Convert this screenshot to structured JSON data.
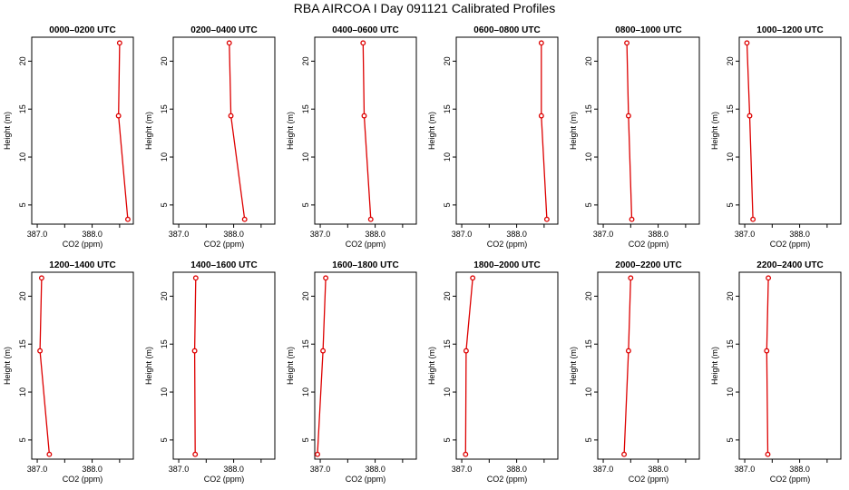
{
  "figure": {
    "title": "RBA AIRCOA I  Day 091121  Calibrated Profiles"
  },
  "colors": {
    "series": "#dd0000",
    "axis": "#000000",
    "background": "#ffffff"
  },
  "chart_data": [
    {
      "type": "line",
      "title": "0000–0200 UTC",
      "xlabel": "CO2 (ppm)",
      "ylabel": "Height (m)",
      "xlim": [
        386.9,
        388.75
      ],
      "ylim": [
        3.0,
        22.5
      ],
      "xticks": [
        387.0,
        388.0
      ],
      "xtick_labels": [
        "387.0",
        "388.0"
      ],
      "yticks": [
        5,
        10,
        15,
        20
      ],
      "ytick_labels": [
        "5",
        "10",
        "15",
        "20"
      ],
      "x": [
        388.65,
        388.48,
        388.5
      ],
      "y": [
        3.5,
        14.3,
        21.9
      ]
    },
    {
      "type": "line",
      "title": "0200–0400 UTC",
      "xlabel": "CO2 (ppm)",
      "ylabel": "Height (m)",
      "xlim": [
        386.9,
        388.75
      ],
      "ylim": [
        3.0,
        22.5
      ],
      "xticks": [
        387.0,
        388.0
      ],
      "xtick_labels": [
        "387.0",
        "388.0"
      ],
      "yticks": [
        5,
        10,
        15,
        20
      ],
      "ytick_labels": [
        "5",
        "10",
        "15",
        "20"
      ],
      "x": [
        388.2,
        387.95,
        387.92
      ],
      "y": [
        3.5,
        14.3,
        21.9
      ]
    },
    {
      "type": "line",
      "title": "0400–0600 UTC",
      "xlabel": "CO2 (ppm)",
      "ylabel": "Height (m)",
      "xlim": [
        386.9,
        388.75
      ],
      "ylim": [
        3.0,
        22.5
      ],
      "xticks": [
        387.0,
        388.0
      ],
      "xtick_labels": [
        "387.0",
        "388.0"
      ],
      "yticks": [
        5,
        10,
        15,
        20
      ],
      "ytick_labels": [
        "5",
        "10",
        "15",
        "20"
      ],
      "x": [
        387.92,
        387.8,
        387.78
      ],
      "y": [
        3.5,
        14.3,
        21.9
      ]
    },
    {
      "type": "line",
      "title": "0600–0800 UTC",
      "xlabel": "CO2 (ppm)",
      "ylabel": "Height (m)",
      "xlim": [
        386.9,
        388.75
      ],
      "ylim": [
        3.0,
        22.5
      ],
      "xticks": [
        387.0,
        388.0
      ],
      "xtick_labels": [
        "387.0",
        "388.0"
      ],
      "yticks": [
        5,
        10,
        15,
        20
      ],
      "ytick_labels": [
        "5",
        "10",
        "15",
        "20"
      ],
      "x": [
        388.55,
        388.45,
        388.45
      ],
      "y": [
        3.5,
        14.3,
        21.9
      ]
    },
    {
      "type": "line",
      "title": "0800–1000 UTC",
      "xlabel": "CO2 (ppm)",
      "ylabel": "Height (m)",
      "xlim": [
        386.9,
        388.75
      ],
      "ylim": [
        3.0,
        22.5
      ],
      "xticks": [
        387.0,
        388.0
      ],
      "xtick_labels": [
        "387.0",
        "388.0"
      ],
      "yticks": [
        5,
        10,
        15,
        20
      ],
      "ytick_labels": [
        "5",
        "10",
        "15",
        "20"
      ],
      "x": [
        387.52,
        387.46,
        387.43
      ],
      "y": [
        3.5,
        14.3,
        21.9
      ]
    },
    {
      "type": "line",
      "title": "1000–1200 UTC",
      "xlabel": "CO2 (ppm)",
      "ylabel": "Height (m)",
      "xlim": [
        386.9,
        388.75
      ],
      "ylim": [
        3.0,
        22.5
      ],
      "xticks": [
        387.0,
        388.0
      ],
      "xtick_labels": [
        "387.0",
        "388.0"
      ],
      "yticks": [
        5,
        10,
        15,
        20
      ],
      "ytick_labels": [
        "5",
        "10",
        "15",
        "20"
      ],
      "x": [
        387.15,
        387.09,
        387.04
      ],
      "y": [
        3.5,
        14.3,
        21.9
      ]
    },
    {
      "type": "line",
      "title": "1200–1400 UTC",
      "xlabel": "CO2 (ppm)",
      "ylabel": "Height (m)",
      "xlim": [
        386.9,
        388.75
      ],
      "ylim": [
        3.0,
        22.5
      ],
      "xticks": [
        387.0,
        388.0
      ],
      "xtick_labels": [
        "387.0",
        "388.0"
      ],
      "yticks": [
        5,
        10,
        15,
        20
      ],
      "ytick_labels": [
        "5",
        "10",
        "15",
        "20"
      ],
      "x": [
        387.22,
        387.05,
        387.08
      ],
      "y": [
        3.5,
        14.3,
        21.9
      ]
    },
    {
      "type": "line",
      "title": "1400–1600 UTC",
      "xlabel": "CO2 (ppm)",
      "ylabel": "Height (m)",
      "xlim": [
        386.9,
        388.75
      ],
      "ylim": [
        3.0,
        22.5
      ],
      "xticks": [
        387.0,
        388.0
      ],
      "xtick_labels": [
        "387.0",
        "388.0"
      ],
      "yticks": [
        5,
        10,
        15,
        20
      ],
      "ytick_labels": [
        "5",
        "10",
        "15",
        "20"
      ],
      "x": [
        387.3,
        387.29,
        387.31
      ],
      "y": [
        3.5,
        14.3,
        21.9
      ]
    },
    {
      "type": "line",
      "title": "1600–1800 UTC",
      "xlabel": "CO2 (ppm)",
      "ylabel": "Height (m)",
      "xlim": [
        386.9,
        388.75
      ],
      "ylim": [
        3.0,
        22.5
      ],
      "xticks": [
        387.0,
        388.0
      ],
      "xtick_labels": [
        "387.0",
        "388.0"
      ],
      "yticks": [
        5,
        10,
        15,
        20
      ],
      "ytick_labels": [
        "5",
        "10",
        "15",
        "20"
      ],
      "x": [
        386.95,
        387.05,
        387.1
      ],
      "y": [
        3.5,
        14.3,
        21.9
      ]
    },
    {
      "type": "line",
      "title": "1800–2000 UTC",
      "xlabel": "CO2 (ppm)",
      "ylabel": "Height (m)",
      "xlim": [
        386.9,
        388.75
      ],
      "ylim": [
        3.0,
        22.5
      ],
      "xticks": [
        387.0,
        388.0
      ],
      "xtick_labels": [
        "387.0",
        "388.0"
      ],
      "yticks": [
        5,
        10,
        15,
        20
      ],
      "ytick_labels": [
        "5",
        "10",
        "15",
        "20"
      ],
      "x": [
        387.07,
        387.08,
        387.2
      ],
      "y": [
        3.5,
        14.3,
        21.9
      ]
    },
    {
      "type": "line",
      "title": "2000–2200 UTC",
      "xlabel": "CO2 (ppm)",
      "ylabel": "Height (m)",
      "xlim": [
        386.9,
        388.75
      ],
      "ylim": [
        3.0,
        22.5
      ],
      "xticks": [
        387.0,
        388.0
      ],
      "xtick_labels": [
        "387.0",
        "388.0"
      ],
      "yticks": [
        5,
        10,
        15,
        20
      ],
      "ytick_labels": [
        "5",
        "10",
        "15",
        "20"
      ],
      "x": [
        387.38,
        387.46,
        387.5
      ],
      "y": [
        3.5,
        14.3,
        21.9
      ]
    },
    {
      "type": "line",
      "title": "2200–2400 UTC",
      "xlabel": "CO2 (ppm)",
      "ylabel": "Height (m)",
      "xlim": [
        386.9,
        388.75
      ],
      "ylim": [
        3.0,
        22.5
      ],
      "xticks": [
        387.0,
        388.0
      ],
      "xtick_labels": [
        "387.0",
        "388.0"
      ],
      "yticks": [
        5,
        10,
        15,
        20
      ],
      "ytick_labels": [
        "5",
        "10",
        "15",
        "20"
      ],
      "x": [
        387.42,
        387.4,
        387.43
      ],
      "y": [
        3.5,
        14.3,
        21.9
      ]
    }
  ]
}
